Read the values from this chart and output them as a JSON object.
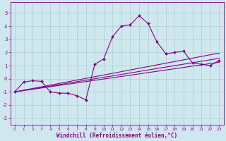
{
  "background_color": "#cfe8ef",
  "grid_color": "#b0d4cc",
  "line_color": "#880088",
  "marker_color": "#880088",
  "xlabel": "Windchill (Refroidissement éolien,°C)",
  "xlim": [
    -0.5,
    23.5
  ],
  "ylim": [
    -3.5,
    5.8
  ],
  "yticks": [
    -3,
    -2,
    -1,
    0,
    1,
    2,
    3,
    4,
    5
  ],
  "xticks": [
    0,
    1,
    2,
    3,
    4,
    5,
    6,
    7,
    8,
    9,
    10,
    11,
    12,
    13,
    14,
    15,
    16,
    17,
    18,
    19,
    20,
    21,
    22,
    23
  ],
  "series1_x": [
    0,
    1,
    2,
    3,
    4,
    5,
    6,
    7,
    8,
    9,
    10,
    11,
    12,
    13,
    14,
    15,
    16,
    17,
    18,
    19,
    20,
    21,
    22,
    23
  ],
  "series1_y": [
    -1.0,
    -0.25,
    -0.15,
    -0.2,
    -1.0,
    -1.1,
    -1.1,
    -1.3,
    -1.6,
    1.1,
    1.5,
    3.2,
    4.0,
    4.1,
    4.8,
    4.2,
    2.8,
    1.9,
    2.0,
    2.1,
    1.2,
    1.1,
    1.0,
    1.4
  ],
  "series2_x": [
    0,
    23
  ],
  "series2_y": [
    -1.0,
    1.95
  ],
  "series3_x": [
    0,
    23
  ],
  "series3_y": [
    -1.0,
    1.55
  ],
  "series4_x": [
    0,
    23
  ],
  "series4_y": [
    -1.0,
    1.25
  ]
}
